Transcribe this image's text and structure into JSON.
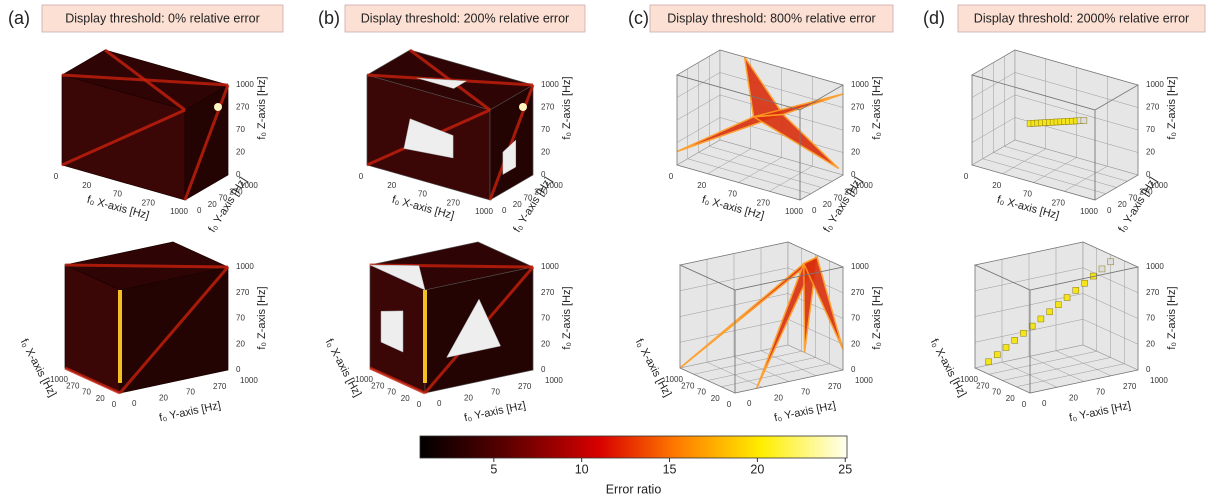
{
  "panels": [
    {
      "label": "(a)",
      "threshold": "Display threshold: 0% relative error"
    },
    {
      "label": "(b)",
      "threshold": "Display threshold: 200% relative error"
    },
    {
      "label": "(c)",
      "threshold": "Display threshold: 800% relative error"
    },
    {
      "label": "(d)",
      "threshold": "Display threshold: 2000% relative error"
    }
  ],
  "axis_labels": {
    "x": "f₀ X-axis [Hz]",
    "y": "f₀ Y-axis [Hz]",
    "z": "f₀ Z-axis [Hz]"
  },
  "axis_ticks": [
    0,
    20,
    70,
    270,
    1000
  ],
  "colorbar": {
    "label": "Error ratio",
    "lim": [
      0.8,
      25.1
    ],
    "ticks": [
      5,
      10,
      15,
      20,
      25
    ]
  }
}
